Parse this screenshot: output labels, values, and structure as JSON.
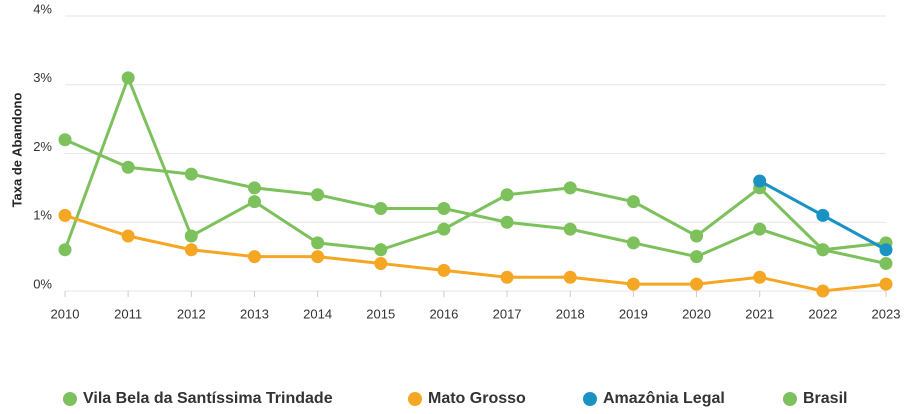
{
  "chart_data": {
    "type": "line",
    "y_axis_label": "Taxa de Abandono",
    "x": [
      2010,
      2011,
      2012,
      2013,
      2014,
      2015,
      2016,
      2017,
      2018,
      2019,
      2020,
      2021,
      2022,
      2023
    ],
    "xlim": [
      2010,
      2023
    ],
    "xticks": [
      2010,
      2011,
      2012,
      2013,
      2014,
      2015,
      2016,
      2017,
      2018,
      2019,
      2020,
      2021,
      2022,
      2023
    ],
    "ylim": [
      0,
      4
    ],
    "yticks": [
      {
        "value": 0,
        "label": "0%"
      },
      {
        "value": 1,
        "label": "1%"
      },
      {
        "value": 2,
        "label": "2%"
      },
      {
        "value": 3,
        "label": "3%"
      },
      {
        "value": 4,
        "label": "4%"
      }
    ],
    "grid": true,
    "legend": "bottom",
    "series": [
      {
        "name": "Vila Bela da Santíssima Trindade",
        "color": "#7cc15c",
        "values": [
          0.6,
          3.1,
          0.8,
          1.3,
          0.7,
          0.6,
          0.9,
          1.4,
          1.5,
          1.3,
          0.8,
          1.5,
          0.6,
          0.7
        ]
      },
      {
        "name": "Mato Grosso",
        "color": "#f5a623",
        "values": [
          1.1,
          0.8,
          0.6,
          0.5,
          0.5,
          0.4,
          0.3,
          0.2,
          0.2,
          0.1,
          0.1,
          0.2,
          0.0,
          0.1
        ]
      },
      {
        "name": "Amazônia Legal",
        "color": "#1a93c4",
        "values": [
          null,
          null,
          null,
          null,
          null,
          null,
          null,
          null,
          null,
          null,
          null,
          1.6,
          1.1,
          0.6
        ]
      },
      {
        "name": "Brasil",
        "color": "#7cc15c",
        "values": [
          2.2,
          1.8,
          1.7,
          1.5,
          1.4,
          1.2,
          1.2,
          1.0,
          0.9,
          0.7,
          0.5,
          0.9,
          0.6,
          0.4
        ]
      }
    ]
  }
}
